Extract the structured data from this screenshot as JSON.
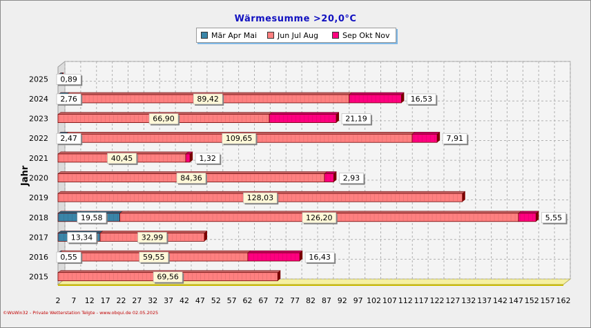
{
  "footer": "©WsWin32 - Private Wetterstation Telgte - www.obqui.de 02.05.2025",
  "chart_data": {
    "type": "bar",
    "orientation": "horizontal",
    "stacked": true,
    "title": "Wärmesumme  >20,0°C",
    "ylabel": "Jahr",
    "xlabel": "",
    "grid": true,
    "legend_position": "top",
    "xlim": [
      2,
      162
    ],
    "x_ticks": [
      2,
      7,
      12,
      17,
      22,
      27,
      32,
      37,
      42,
      47,
      52,
      57,
      62,
      67,
      72,
      77,
      82,
      87,
      92,
      97,
      102,
      107,
      112,
      117,
      122,
      127,
      132,
      137,
      142,
      147,
      152,
      157,
      162
    ],
    "categories": [
      "2025",
      "2024",
      "2023",
      "2022",
      "2021",
      "2020",
      "2019",
      "2018",
      "2017",
      "2016",
      "2015"
    ],
    "tick_labels": [
      "2025",
      "2024",
      "2023",
      "2022",
      "2021",
      "2020",
      "2019",
      "2018",
      "2017",
      "2016",
      "2015"
    ],
    "series": [
      {
        "name": "Mär Apr Mai",
        "color": "#3a85a8",
        "values": [
          0.89,
          2.76,
          0,
          2.47,
          0,
          0,
          0,
          19.58,
          13.34,
          0.55,
          0
        ]
      },
      {
        "name": "Jun Jul Aug",
        "color": "#ff8080",
        "values": [
          0,
          89.42,
          66.9,
          109.65,
          40.45,
          84.36,
          128.03,
          126.2,
          32.99,
          59.55,
          69.56
        ]
      },
      {
        "name": "Sep Okt Nov",
        "color": "#ff007f",
        "values": [
          0,
          16.53,
          21.19,
          7.91,
          1.32,
          2.93,
          0,
          5.55,
          0,
          16.43,
          0
        ]
      }
    ],
    "data_labels": [
      [
        "0,89",
        "",
        ""
      ],
      [
        "2,76",
        "89,42",
        "16,53"
      ],
      [
        "",
        "66,90",
        "21,19"
      ],
      [
        "2,47",
        "109,65",
        "7,91"
      ],
      [
        "",
        "40,45",
        "1,32"
      ],
      [
        "",
        "84,36",
        "2,93"
      ],
      [
        "",
        "128,03",
        ""
      ],
      [
        "19,58",
        "126,20",
        "5,55"
      ],
      [
        "13,34",
        "32,99",
        ""
      ],
      [
        "0,55",
        "59,55",
        "16,43"
      ],
      [
        "",
        "69,56",
        ""
      ]
    ]
  }
}
